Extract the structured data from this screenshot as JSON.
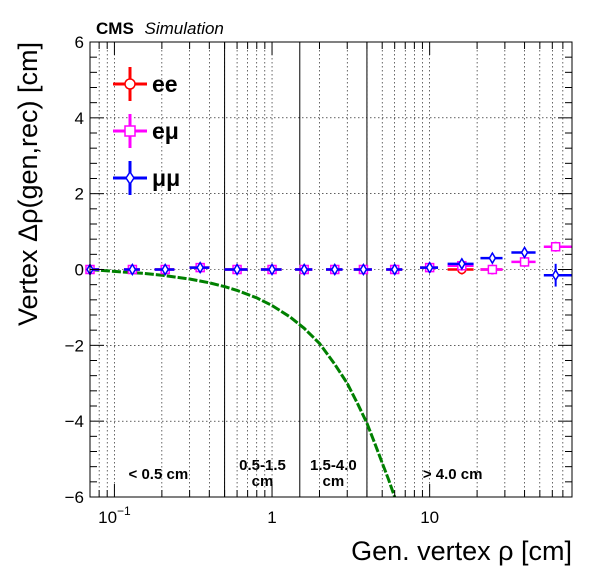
{
  "chart_data": {
    "type": "scatter",
    "header": {
      "experiment": "CMS",
      "label": "Simulation"
    },
    "xlabel": "Gen. vertex ρ [cm]",
    "ylabel": "Vertex Δρ(gen,rec) [cm]",
    "x_scale": "log",
    "xlim": [
      0.07,
      80
    ],
    "ylim": [
      -6,
      6
    ],
    "x_ticks": [
      {
        "value": 0.1,
        "label": "10−1"
      },
      {
        "value": 1,
        "label": "1"
      },
      {
        "value": 10,
        "label": "10"
      }
    ],
    "y_ticks": [
      {
        "value": -6,
        "label": "−6"
      },
      {
        "value": -4,
        "label": "−4"
      },
      {
        "value": -2,
        "label": "−2"
      },
      {
        "value": 0,
        "label": "0"
      },
      {
        "value": 2,
        "label": "2"
      },
      {
        "value": 4,
        "label": "4"
      },
      {
        "value": 6,
        "label": "6"
      }
    ],
    "grid": true,
    "legend_position": "top-left",
    "region_boundaries": [
      0.5,
      1.5,
      4.0
    ],
    "regions": [
      {
        "lines": [
          "< 0.5 cm"
        ],
        "x": 0.19
      },
      {
        "lines": [
          "0.5-1.5",
          "cm"
        ],
        "x": 0.87
      },
      {
        "lines": [
          "1.5-4.0",
          "cm"
        ],
        "x": 2.45
      },
      {
        "lines": [
          "> 4.0 cm"
        ],
        "x": 14.0
      }
    ],
    "series": [
      {
        "name": "ee",
        "color": "#ff0000",
        "marker": "circle",
        "points": [
          {
            "x": 0.07,
            "xlo": 0.06,
            "xhi": 0.08,
            "y": 0.0
          },
          {
            "x": 0.13,
            "xlo": 0.115,
            "xhi": 0.145,
            "y": 0.0
          },
          {
            "x": 0.21,
            "xlo": 0.18,
            "xhi": 0.24,
            "y": 0.0
          },
          {
            "x": 0.35,
            "xlo": 0.3,
            "xhi": 0.4,
            "y": 0.05
          },
          {
            "x": 0.6,
            "xlo": 0.5,
            "xhi": 0.7,
            "y": 0.0
          },
          {
            "x": 1.0,
            "xlo": 0.85,
            "xhi": 1.15,
            "y": 0.0
          },
          {
            "x": 1.6,
            "xlo": 1.4,
            "xhi": 1.8,
            "y": 0.0
          },
          {
            "x": 2.5,
            "xlo": 2.2,
            "xhi": 2.8,
            "y": 0.0
          },
          {
            "x": 3.8,
            "xlo": 3.3,
            "xhi": 4.3,
            "y": 0.0
          },
          {
            "x": 6.0,
            "xlo": 5.3,
            "xhi": 6.7,
            "y": 0.0
          },
          {
            "x": 10.0,
            "xlo": 8.7,
            "xhi": 11.3,
            "y": 0.05
          },
          {
            "x": 16.0,
            "xlo": 13.0,
            "xhi": 19.0,
            "y": 0.0
          },
          {
            "x": 25.0,
            "xlo": 21.0,
            "xhi": 29.0,
            "y": 0.0
          }
        ]
      },
      {
        "name": "eμ",
        "color": "#ff00ff",
        "marker": "square",
        "points": [
          {
            "x": 0.07,
            "xlo": 0.06,
            "xhi": 0.08,
            "y": 0.0
          },
          {
            "x": 0.13,
            "xlo": 0.115,
            "xhi": 0.145,
            "y": 0.0
          },
          {
            "x": 0.21,
            "xlo": 0.18,
            "xhi": 0.24,
            "y": 0.0
          },
          {
            "x": 0.35,
            "xlo": 0.3,
            "xhi": 0.4,
            "y": 0.05
          },
          {
            "x": 0.6,
            "xlo": 0.5,
            "xhi": 0.7,
            "y": 0.0
          },
          {
            "x": 1.0,
            "xlo": 0.85,
            "xhi": 1.15,
            "y": 0.0
          },
          {
            "x": 1.6,
            "xlo": 1.4,
            "xhi": 1.8,
            "y": 0.0
          },
          {
            "x": 2.5,
            "xlo": 2.2,
            "xhi": 2.8,
            "y": 0.0
          },
          {
            "x": 3.8,
            "xlo": 3.3,
            "xhi": 4.3,
            "y": 0.0
          },
          {
            "x": 6.0,
            "xlo": 5.3,
            "xhi": 6.7,
            "y": 0.0
          },
          {
            "x": 10.0,
            "xlo": 8.7,
            "xhi": 11.3,
            "y": 0.05
          },
          {
            "x": 16.0,
            "xlo": 13.0,
            "xhi": 19.0,
            "y": 0.1
          },
          {
            "x": 25.0,
            "xlo": 21.0,
            "xhi": 29.0,
            "y": 0.0
          },
          {
            "x": 40.0,
            "xlo": 33.0,
            "xhi": 47.0,
            "y": 0.2
          },
          {
            "x": 63.0,
            "xlo": 53.0,
            "xhi": 80.0,
            "y": 0.6
          }
        ]
      },
      {
        "name": "μμ",
        "color": "#0000ff",
        "marker": "diamond",
        "points": [
          {
            "x": 0.07,
            "xlo": 0.06,
            "xhi": 0.08,
            "y": 0.0
          },
          {
            "x": 0.13,
            "xlo": 0.115,
            "xhi": 0.145,
            "y": 0.0
          },
          {
            "x": 0.21,
            "xlo": 0.18,
            "xhi": 0.24,
            "y": 0.0
          },
          {
            "x": 0.35,
            "xlo": 0.3,
            "xhi": 0.4,
            "y": 0.05
          },
          {
            "x": 0.6,
            "xlo": 0.5,
            "xhi": 0.7,
            "y": 0.0
          },
          {
            "x": 1.0,
            "xlo": 0.85,
            "xhi": 1.15,
            "y": 0.0
          },
          {
            "x": 1.6,
            "xlo": 1.4,
            "xhi": 1.8,
            "y": 0.0
          },
          {
            "x": 2.5,
            "xlo": 2.2,
            "xhi": 2.8,
            "y": 0.0
          },
          {
            "x": 3.8,
            "xlo": 3.3,
            "xhi": 4.3,
            "y": 0.0
          },
          {
            "x": 6.0,
            "xlo": 5.3,
            "xhi": 6.7,
            "y": 0.0
          },
          {
            "x": 10.0,
            "xlo": 8.7,
            "xhi": 11.3,
            "y": 0.05
          },
          {
            "x": 16.0,
            "xlo": 13.0,
            "xhi": 19.0,
            "y": 0.15
          },
          {
            "x": 25.0,
            "xlo": 21.0,
            "xhi": 29.0,
            "y": 0.3
          },
          {
            "x": 40.0,
            "xlo": 33.0,
            "xhi": 47.0,
            "y": 0.45
          },
          {
            "x": 63.0,
            "xlo": 53.0,
            "xhi": 80.0,
            "y": -0.15,
            "yerr": 0.3
          }
        ]
      }
    ],
    "curve": {
      "color": "#008000",
      "style": "dashed",
      "points": [
        [
          0.07,
          0.0
        ],
        [
          0.1,
          -0.05
        ],
        [
          0.15,
          -0.1
        ],
        [
          0.2,
          -0.15
        ],
        [
          0.3,
          -0.25
        ],
        [
          0.4,
          -0.35
        ],
        [
          0.5,
          -0.45
        ],
        [
          0.6,
          -0.55
        ],
        [
          0.8,
          -0.75
        ],
        [
          1.0,
          -0.95
        ],
        [
          1.3,
          -1.25
        ],
        [
          1.6,
          -1.55
        ],
        [
          2.0,
          -1.95
        ],
        [
          2.5,
          -2.5
        ],
        [
          3.0,
          -3.0
        ],
        [
          3.5,
          -3.55
        ],
        [
          4.0,
          -4.05
        ],
        [
          4.5,
          -4.6
        ],
        [
          5.0,
          -5.1
        ],
        [
          5.5,
          -5.55
        ],
        [
          6.0,
          -6.0
        ]
      ]
    }
  }
}
